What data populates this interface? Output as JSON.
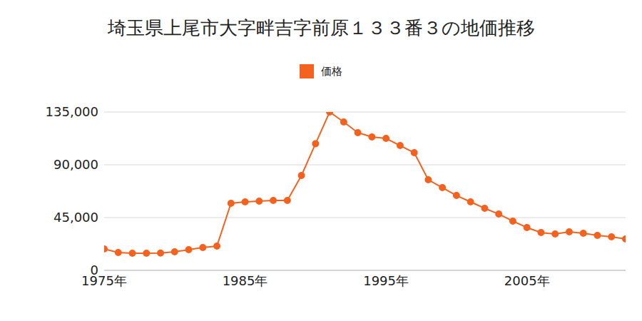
{
  "chart_data": {
    "type": "line",
    "title": "埼玉県上尾市大字畔吉字前原１３３番３の地価推移",
    "x": [
      1975,
      1976,
      1977,
      1978,
      1979,
      1980,
      1981,
      1982,
      1983,
      1984,
      1985,
      1986,
      1987,
      1988,
      1989,
      1990,
      1991,
      1992,
      1993,
      1994,
      1995,
      1996,
      1997,
      1998,
      1999,
      2000,
      2001,
      2002,
      2003,
      2004,
      2005,
      2006,
      2007,
      2008,
      2009,
      2010,
      2011,
      2012
    ],
    "series": [
      {
        "name": "価格",
        "color": "#f4621f",
        "marker": "circle",
        "values": [
          18200,
          15200,
          14600,
          14600,
          14700,
          15800,
          17600,
          19500,
          20700,
          57200,
          58400,
          59000,
          59600,
          59600,
          80900,
          108000,
          135000,
          126500,
          117400,
          113700,
          112500,
          106400,
          100300,
          77200,
          70500,
          63800,
          58400,
          52900,
          48000,
          42000,
          36500,
          32200,
          31000,
          32800,
          31600,
          29800,
          28600,
          26800
        ]
      }
    ],
    "xlim": [
      1975,
      2012
    ],
    "xticks": [
      {
        "value": 1975,
        "label": "1975年"
      },
      {
        "value": 1985,
        "label": "1985年"
      },
      {
        "value": 1995,
        "label": "1995年"
      },
      {
        "value": 2005,
        "label": "2005年"
      }
    ],
    "ylim": [
      0,
      135000
    ],
    "yticks": [
      0,
      {
        "value": 45000,
        "label": "45,000"
      },
      {
        "value": 90000,
        "label": "90,000"
      },
      {
        "value": 135000,
        "label": "135,000"
      }
    ],
    "grid": true,
    "legend": "top"
  }
}
